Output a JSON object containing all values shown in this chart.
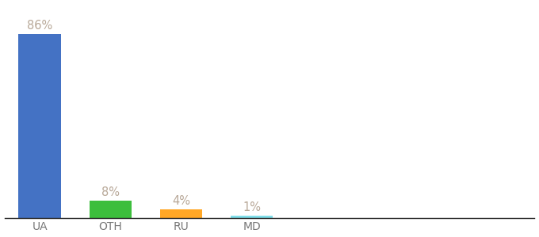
{
  "categories": [
    "UA",
    "OTH",
    "RU",
    "MD"
  ],
  "values": [
    86,
    8,
    4,
    1
  ],
  "bar_colors": [
    "#4472C4",
    "#3DBE3D",
    "#FFA726",
    "#80DEEA"
  ],
  "label_color": "#B8A898",
  "value_labels": [
    "86%",
    "8%",
    "4%",
    "1%"
  ],
  "background_color": "#ffffff",
  "ylim": [
    0,
    100
  ],
  "bar_width": 0.6,
  "label_fontsize": 10.5,
  "tick_fontsize": 10,
  "x_positions": [
    0.5,
    1.5,
    2.5,
    3.5
  ],
  "xlim": [
    0,
    7.5
  ]
}
